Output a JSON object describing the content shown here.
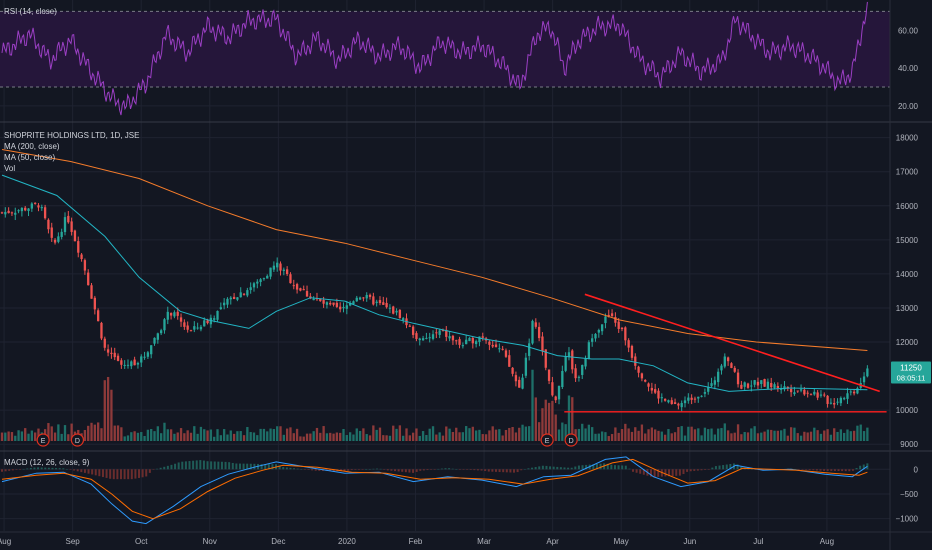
{
  "colors": {
    "background": "#131722",
    "grid": "#1f2331",
    "up": "#26a69a",
    "down": "#ef5350",
    "ma200": "#f57c2b",
    "ma50": "#22b5c4",
    "rsi": "#9b3fc4",
    "rsi_band": "#25163a",
    "macd": "#2e9bff",
    "signal": "#ff6d00",
    "trendline": "#ff1f1f",
    "support": "#ff1f1f",
    "price_tag": "#26a69a",
    "event_badge": "#e0301e"
  },
  "rsi_panel": {
    "title": "RSI (14, close)",
    "axis_labels": [
      "60.00",
      "40.00",
      "20.00"
    ]
  },
  "price_panel": {
    "title": "SHOPRITE HOLDINGS LTD, 1D, JSE",
    "legend": [
      "MA (200, close)",
      "MA (50, close)",
      "Vol"
    ],
    "axis_labels": [
      "18000",
      "17000",
      "16000",
      "15000",
      "14000",
      "13000",
      "12000",
      "10000",
      "9000"
    ],
    "last_price": "11250",
    "countdown": "08:05:11",
    "events": [
      "E",
      "D",
      "E",
      "D"
    ]
  },
  "macd_panel": {
    "title": "MACD (12, 26, close, 9)",
    "axis_labels": [
      "0",
      "−500",
      "−1000"
    ]
  },
  "time_axis": [
    "Aug",
    "Sep",
    "Oct",
    "Nov",
    "Dec",
    "2020",
    "Feb",
    "Mar",
    "Apr",
    "May",
    "Jun",
    "Jul",
    "Aug"
  ],
  "chart_data": [
    {
      "type": "candlestick",
      "title": "SHOPRITE HOLDINGS LTD, 1D, JSE",
      "x_ticks": [
        "Aug",
        "Sep",
        "Oct",
        "Nov",
        "Dec",
        "2020",
        "Feb",
        "Mar",
        "Apr",
        "May",
        "Jun",
        "Jul",
        "Aug"
      ],
      "y_ticks": [
        18000,
        17000,
        16000,
        15000,
        14000,
        13000,
        12000,
        10000,
        9000
      ],
      "ylim": [
        8800,
        18400
      ],
      "close_path": [
        {
          "m": 0,
          "v": 15800
        },
        {
          "m": 0.3,
          "v": 15900
        },
        {
          "m": 0.55,
          "v": 16050
        },
        {
          "m": 0.75,
          "v": 14800
        },
        {
          "m": 0.95,
          "v": 15700
        },
        {
          "m": 1.2,
          "v": 14200
        },
        {
          "m": 1.5,
          "v": 11800
        },
        {
          "m": 1.75,
          "v": 11300
        },
        {
          "m": 2.05,
          "v": 11500
        },
        {
          "m": 2.45,
          "v": 12900
        },
        {
          "m": 2.75,
          "v": 12300
        },
        {
          "m": 3.05,
          "v": 12700
        },
        {
          "m": 3.35,
          "v": 13300
        },
        {
          "m": 3.7,
          "v": 13700
        },
        {
          "m": 4.0,
          "v": 14300
        },
        {
          "m": 4.3,
          "v": 13600
        },
        {
          "m": 4.6,
          "v": 13200
        },
        {
          "m": 4.95,
          "v": 12900
        },
        {
          "m": 5.2,
          "v": 13400
        },
        {
          "m": 5.5,
          "v": 13100
        },
        {
          "m": 5.8,
          "v": 12800
        },
        {
          "m": 6.1,
          "v": 12000
        },
        {
          "m": 6.4,
          "v": 12300
        },
        {
          "m": 6.7,
          "v": 11900
        },
        {
          "m": 7.0,
          "v": 12200
        },
        {
          "m": 7.3,
          "v": 11700
        },
        {
          "m": 7.55,
          "v": 10600
        },
        {
          "m": 7.75,
          "v": 12700
        },
        {
          "m": 7.9,
          "v": 11500
        },
        {
          "m": 8.05,
          "v": 10200
        },
        {
          "m": 8.25,
          "v": 11700
        },
        {
          "m": 8.4,
          "v": 10800
        },
        {
          "m": 8.6,
          "v": 12200
        },
        {
          "m": 8.85,
          "v": 12800
        },
        {
          "m": 9.05,
          "v": 12300
        },
        {
          "m": 9.25,
          "v": 11300
        },
        {
          "m": 9.5,
          "v": 10500
        },
        {
          "m": 9.8,
          "v": 10100
        },
        {
          "m": 10.1,
          "v": 10400
        },
        {
          "m": 10.35,
          "v": 10700
        },
        {
          "m": 10.55,
          "v": 11700
        },
        {
          "m": 10.75,
          "v": 10700
        },
        {
          "m": 11.0,
          "v": 10800
        },
        {
          "m": 11.3,
          "v": 10700
        },
        {
          "m": 11.6,
          "v": 10600
        },
        {
          "m": 11.85,
          "v": 10500
        },
        {
          "m": 12.1,
          "v": 10200
        },
        {
          "m": 12.25,
          "v": 10400
        },
        {
          "m": 12.45,
          "v": 10600
        },
        {
          "m": 12.62,
          "v": 11250
        }
      ],
      "series": [
        {
          "name": "MA (200, close)",
          "points": [
            {
              "m": 0,
              "v": 17650
            },
            {
              "m": 1,
              "v": 17300
            },
            {
              "m": 2,
              "v": 16800
            },
            {
              "m": 3,
              "v": 16000
            },
            {
              "m": 4,
              "v": 15300
            },
            {
              "m": 5,
              "v": 14900
            },
            {
              "m": 6,
              "v": 14400
            },
            {
              "m": 7,
              "v": 13900
            },
            {
              "m": 8,
              "v": 13300
            },
            {
              "m": 9,
              "v": 12650
            },
            {
              "m": 10,
              "v": 12250
            },
            {
              "m": 11,
              "v": 12000
            },
            {
              "m": 12.62,
              "v": 11750
            }
          ]
        },
        {
          "name": "MA (50, close)",
          "points": [
            {
              "m": 0,
              "v": 16900
            },
            {
              "m": 0.8,
              "v": 16300
            },
            {
              "m": 1.5,
              "v": 15100
            },
            {
              "m": 2,
              "v": 13900
            },
            {
              "m": 2.6,
              "v": 12900
            },
            {
              "m": 3,
              "v": 12650
            },
            {
              "m": 3.6,
              "v": 12400
            },
            {
              "m": 4,
              "v": 12900
            },
            {
              "m": 4.5,
              "v": 13300
            },
            {
              "m": 5,
              "v": 13200
            },
            {
              "m": 5.5,
              "v": 12800
            },
            {
              "m": 6,
              "v": 12550
            },
            {
              "m": 7,
              "v": 12100
            },
            {
              "m": 7.6,
              "v": 11900
            },
            {
              "m": 8.1,
              "v": 11600
            },
            {
              "m": 8.6,
              "v": 11500
            },
            {
              "m": 9,
              "v": 11500
            },
            {
              "m": 9.5,
              "v": 11300
            },
            {
              "m": 10,
              "v": 10800
            },
            {
              "m": 10.6,
              "v": 10550
            },
            {
              "m": 11.5,
              "v": 10650
            },
            {
              "m": 12.62,
              "v": 10600
            }
          ]
        }
      ],
      "trendline": {
        "from": {
          "m": 8.5,
          "v": 13400
        },
        "to": {
          "m": 12.8,
          "v": 10550
        }
      },
      "support": {
        "from": {
          "m": 8.2,
          "v": 9950
        },
        "to": {
          "m": 12.9,
          "v": 9950
        }
      },
      "event_markers": [
        {
          "label": "E",
          "m": 0.6
        },
        {
          "label": "D",
          "m": 1.1
        },
        {
          "label": "E",
          "m": 7.95
        },
        {
          "label": "D",
          "m": 8.3
        }
      ]
    },
    {
      "type": "line",
      "title": "RSI (14, close)",
      "y_ticks": [
        60,
        40,
        20
      ],
      "ylim": [
        12,
        76
      ],
      "band": [
        30,
        70
      ],
      "series": [
        {
          "name": "RSI (14, close)",
          "points": [
            {
              "m": 0,
              "v": 48
            },
            {
              "m": 0.4,
              "v": 58
            },
            {
              "m": 0.7,
              "v": 44
            },
            {
              "m": 1.0,
              "v": 55
            },
            {
              "m": 1.3,
              "v": 38
            },
            {
              "m": 1.6,
              "v": 24
            },
            {
              "m": 1.8,
              "v": 19
            },
            {
              "m": 2.1,
              "v": 32
            },
            {
              "m": 2.4,
              "v": 58
            },
            {
              "m": 2.7,
              "v": 48
            },
            {
              "m": 3.0,
              "v": 62
            },
            {
              "m": 3.3,
              "v": 56
            },
            {
              "m": 3.6,
              "v": 65
            },
            {
              "m": 4.0,
              "v": 66
            },
            {
              "m": 4.3,
              "v": 46
            },
            {
              "m": 4.6,
              "v": 56
            },
            {
              "m": 4.9,
              "v": 44
            },
            {
              "m": 5.2,
              "v": 55
            },
            {
              "m": 5.5,
              "v": 46
            },
            {
              "m": 5.8,
              "v": 52
            },
            {
              "m": 6.1,
              "v": 40
            },
            {
              "m": 6.4,
              "v": 54
            },
            {
              "m": 6.7,
              "v": 48
            },
            {
              "m": 7.0,
              "v": 52
            },
            {
              "m": 7.3,
              "v": 42
            },
            {
              "m": 7.55,
              "v": 30
            },
            {
              "m": 7.8,
              "v": 58
            },
            {
              "m": 8.0,
              "v": 62
            },
            {
              "m": 8.2,
              "v": 40
            },
            {
              "m": 8.4,
              "v": 54
            },
            {
              "m": 8.7,
              "v": 62
            },
            {
              "m": 9.0,
              "v": 63
            },
            {
              "m": 9.3,
              "v": 45
            },
            {
              "m": 9.6,
              "v": 35
            },
            {
              "m": 9.9,
              "v": 48
            },
            {
              "m": 10.2,
              "v": 38
            },
            {
              "m": 10.5,
              "v": 44
            },
            {
              "m": 10.7,
              "v": 66
            },
            {
              "m": 10.9,
              "v": 58
            },
            {
              "m": 11.2,
              "v": 48
            },
            {
              "m": 11.5,
              "v": 52
            },
            {
              "m": 11.8,
              "v": 46
            },
            {
              "m": 12.0,
              "v": 40
            },
            {
              "m": 12.2,
              "v": 32
            },
            {
              "m": 12.4,
              "v": 38
            },
            {
              "m": 12.55,
              "v": 62
            },
            {
              "m": 12.62,
              "v": 72
            }
          ]
        }
      ]
    },
    {
      "type": "line",
      "title": "MACD (12, 26, close, 9)",
      "y_ticks": [
        0,
        -500,
        -1000
      ],
      "ylim": [
        -1250,
        350
      ],
      "series": [
        {
          "name": "MACD",
          "points": [
            {
              "m": 0,
              "v": -250
            },
            {
              "m": 0.5,
              "v": -80
            },
            {
              "m": 0.9,
              "v": -60
            },
            {
              "m": 1.3,
              "v": -300
            },
            {
              "m": 1.6,
              "v": -700
            },
            {
              "m": 1.9,
              "v": -1050
            },
            {
              "m": 2.1,
              "v": -1100
            },
            {
              "m": 2.5,
              "v": -750
            },
            {
              "m": 2.9,
              "v": -350
            },
            {
              "m": 3.3,
              "v": -100
            },
            {
              "m": 3.7,
              "v": 50
            },
            {
              "m": 4.0,
              "v": 150
            },
            {
              "m": 4.5,
              "v": 30
            },
            {
              "m": 5.0,
              "v": -80
            },
            {
              "m": 5.5,
              "v": -60
            },
            {
              "m": 6.0,
              "v": -250
            },
            {
              "m": 6.5,
              "v": -150
            },
            {
              "m": 7.0,
              "v": -220
            },
            {
              "m": 7.5,
              "v": -350
            },
            {
              "m": 7.9,
              "v": -150
            },
            {
              "m": 8.3,
              "v": -120
            },
            {
              "m": 8.8,
              "v": 200
            },
            {
              "m": 9.1,
              "v": 250
            },
            {
              "m": 9.5,
              "v": -150
            },
            {
              "m": 9.9,
              "v": -350
            },
            {
              "m": 10.3,
              "v": -250
            },
            {
              "m": 10.7,
              "v": 80
            },
            {
              "m": 11.1,
              "v": -20
            },
            {
              "m": 11.5,
              "v": 0
            },
            {
              "m": 12.0,
              "v": -100
            },
            {
              "m": 12.4,
              "v": -150
            },
            {
              "m": 12.62,
              "v": 60
            }
          ]
        },
        {
          "name": "Signal",
          "points": [
            {
              "m": 0,
              "v": -200
            },
            {
              "m": 0.5,
              "v": -120
            },
            {
              "m": 0.9,
              "v": -80
            },
            {
              "m": 1.3,
              "v": -200
            },
            {
              "m": 1.6,
              "v": -500
            },
            {
              "m": 1.9,
              "v": -850
            },
            {
              "m": 2.2,
              "v": -1000
            },
            {
              "m": 2.6,
              "v": -800
            },
            {
              "m": 3.0,
              "v": -450
            },
            {
              "m": 3.4,
              "v": -180
            },
            {
              "m": 3.8,
              "v": -20
            },
            {
              "m": 4.1,
              "v": 80
            },
            {
              "m": 4.6,
              "v": 40
            },
            {
              "m": 5.1,
              "v": -60
            },
            {
              "m": 5.6,
              "v": -80
            },
            {
              "m": 6.1,
              "v": -200
            },
            {
              "m": 6.6,
              "v": -170
            },
            {
              "m": 7.1,
              "v": -200
            },
            {
              "m": 7.6,
              "v": -300
            },
            {
              "m": 8.0,
              "v": -200
            },
            {
              "m": 8.4,
              "v": -130
            },
            {
              "m": 8.9,
              "v": 130
            },
            {
              "m": 9.2,
              "v": 200
            },
            {
              "m": 9.6,
              "v": -50
            },
            {
              "m": 10.0,
              "v": -280
            },
            {
              "m": 10.4,
              "v": -230
            },
            {
              "m": 10.8,
              "v": 20
            },
            {
              "m": 11.2,
              "v": 0
            },
            {
              "m": 11.6,
              "v": -20
            },
            {
              "m": 12.1,
              "v": -80
            },
            {
              "m": 12.5,
              "v": -120
            },
            {
              "m": 12.62,
              "v": -60
            }
          ]
        }
      ]
    }
  ]
}
